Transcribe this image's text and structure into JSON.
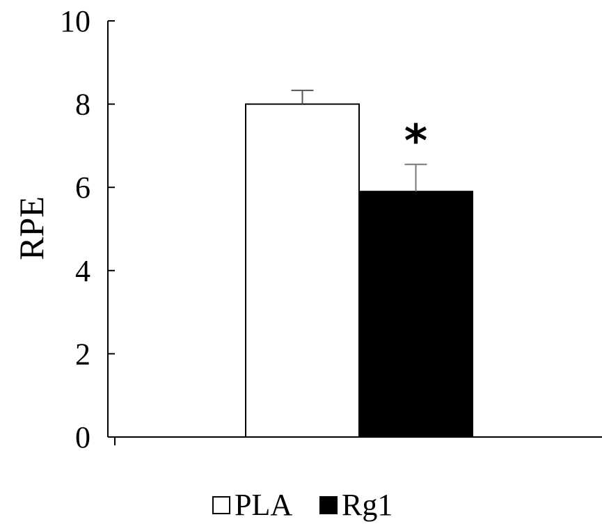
{
  "chart_data": {
    "type": "bar",
    "categories": [
      ""
    ],
    "series": [
      {
        "name": "PLA",
        "values": [
          8.0
        ],
        "error": [
          0.33
        ],
        "color": "#ffffff",
        "annotation": ""
      },
      {
        "name": "Rg1",
        "values": [
          5.9
        ],
        "error": [
          0.65
        ],
        "color": "#000000",
        "annotation": "*"
      }
    ],
    "title": "",
    "xlabel": "",
    "ylabel": "RPE",
    "ylim": [
      0,
      10
    ],
    "yticks": [
      0,
      2,
      4,
      6,
      8,
      10
    ],
    "grid": false,
    "legend_position": "bottom"
  }
}
